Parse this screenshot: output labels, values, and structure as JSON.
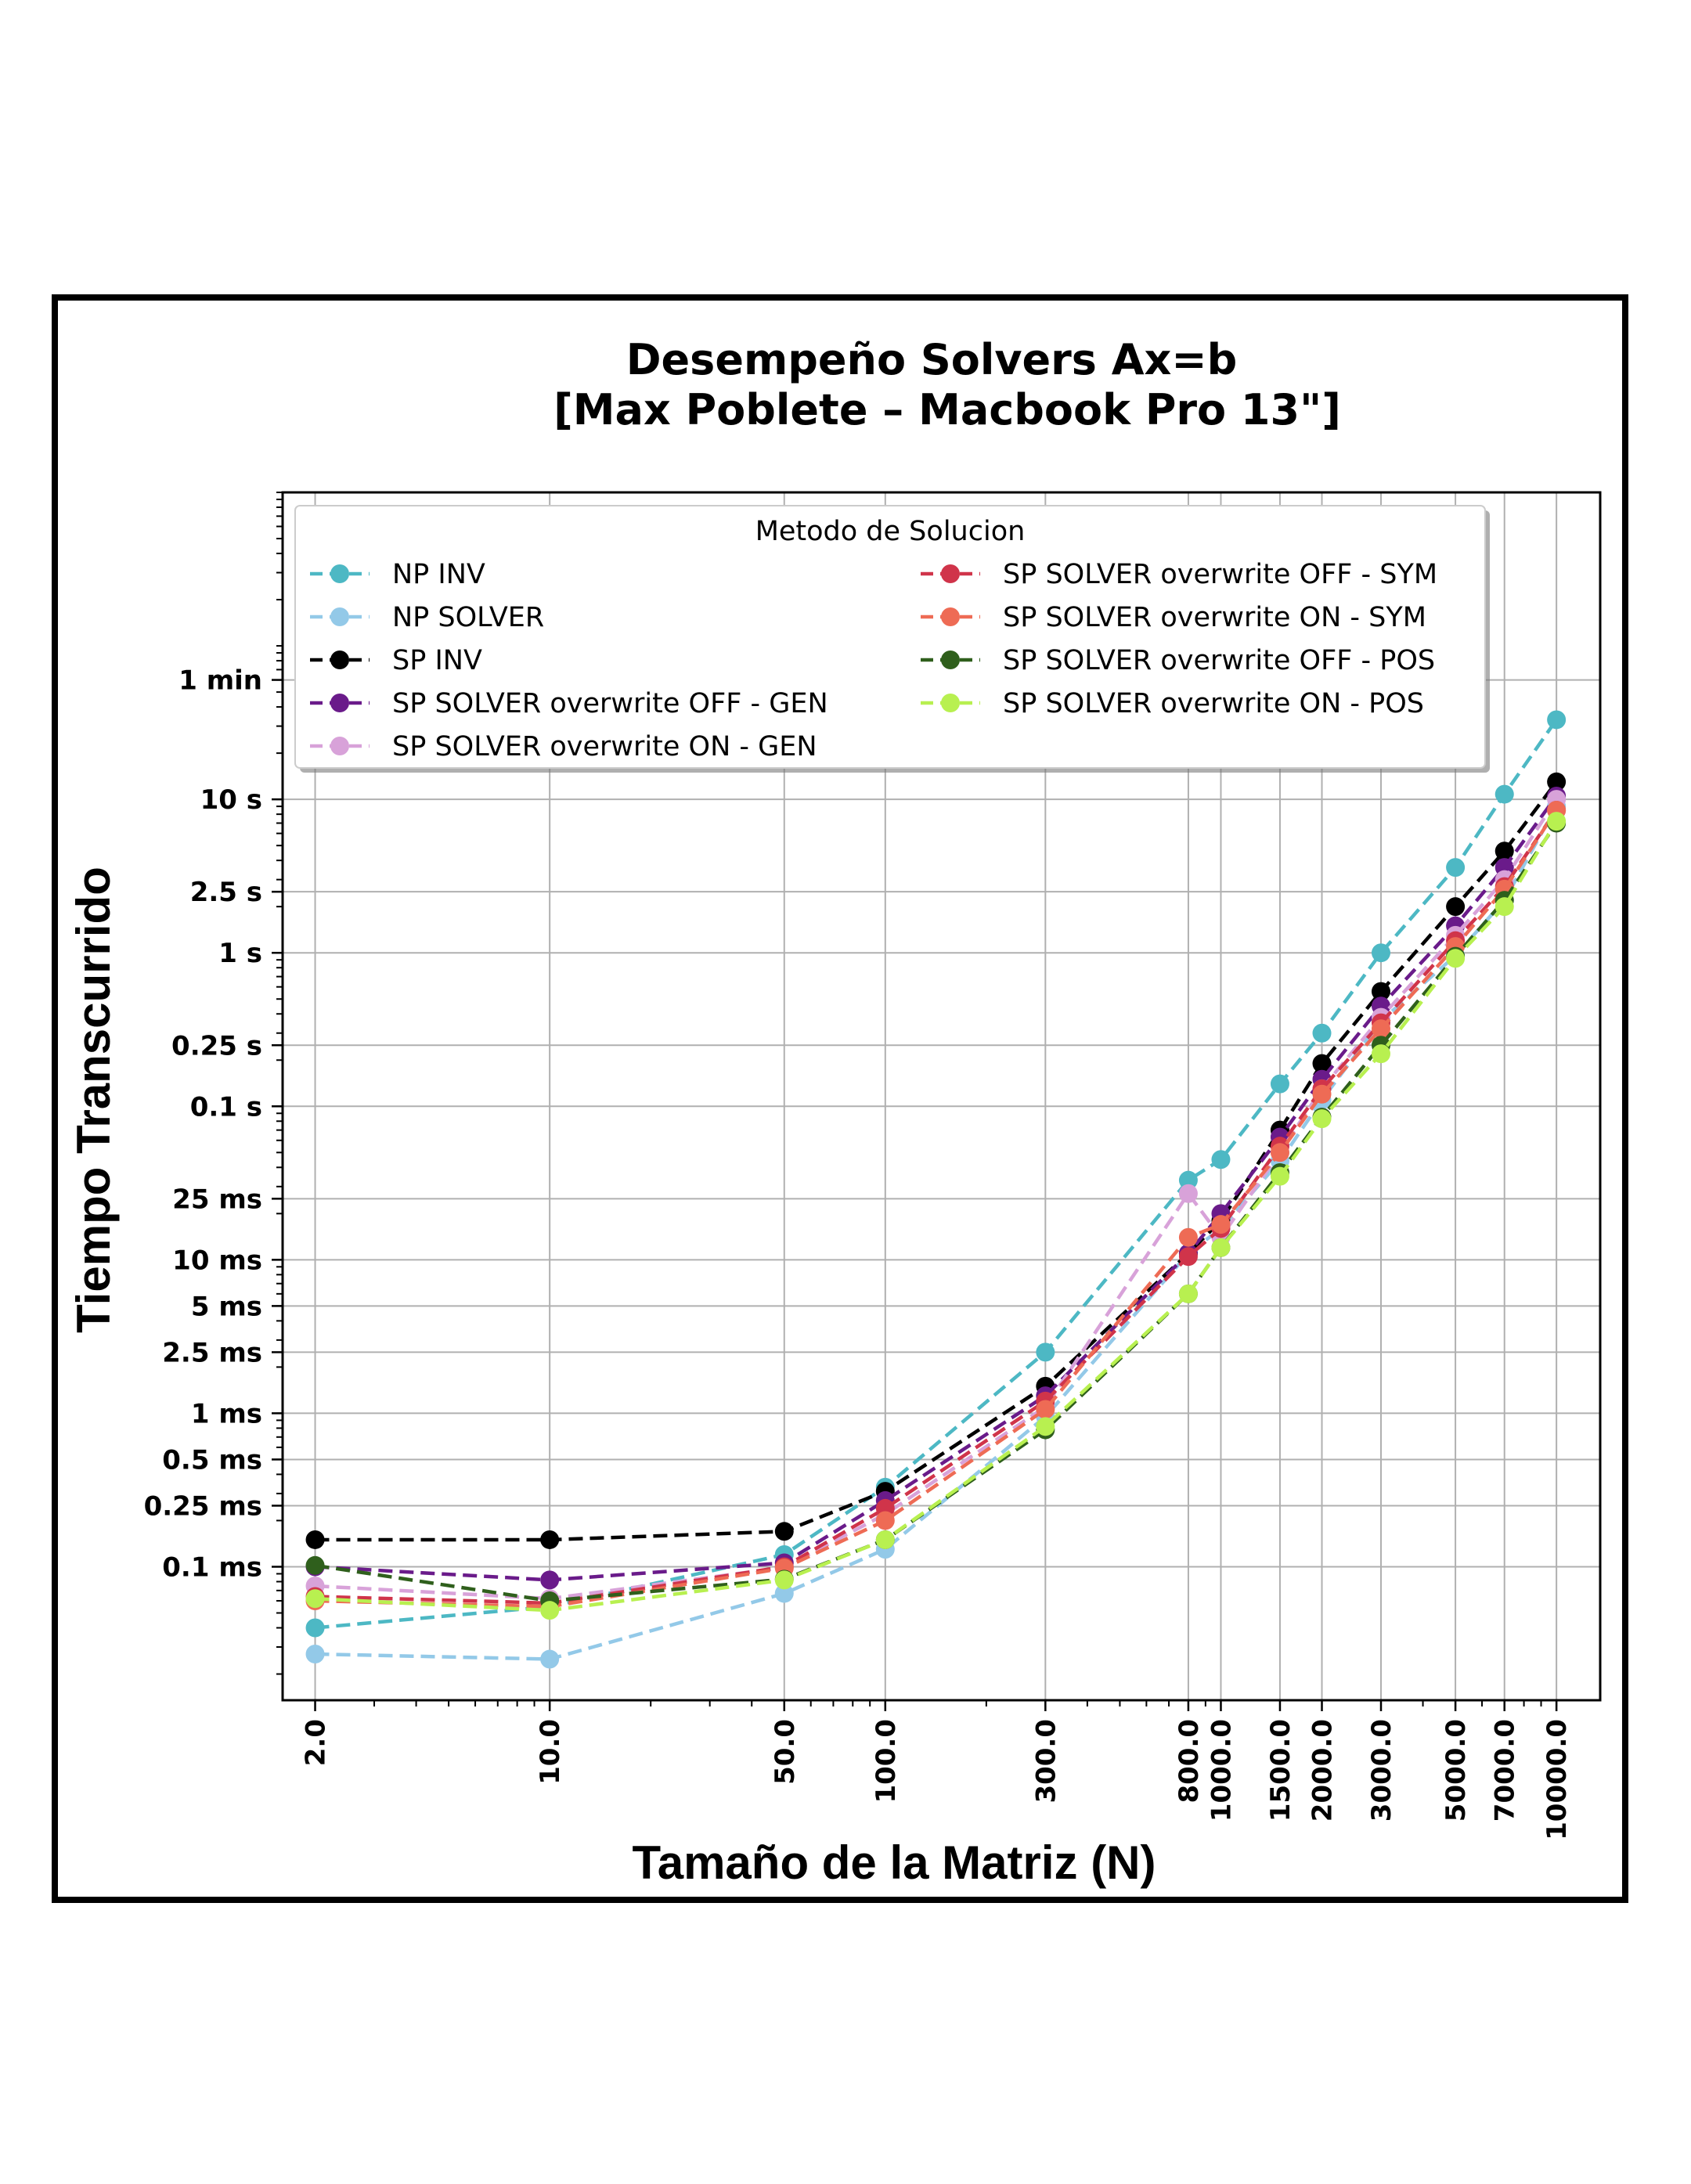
{
  "chart_data": {
    "type": "line",
    "title": [
      "Desempeño Solvers Ax=b",
      "[Max Poblete – Macbook Pro 13\"]"
    ],
    "xlabel": "Tamaño de la Matriz (N)",
    "ylabel": "Tiempo Transcurrido",
    "x_scale": "log",
    "y_scale": "log",
    "grid": true,
    "x": [
      2,
      10,
      50,
      100,
      300,
      800,
      1000,
      1500,
      2000,
      3000,
      5000,
      7000,
      10000
    ],
    "x_tick_labels": [
      "2.0",
      "10.0",
      "50.0",
      "100.0",
      "300.0",
      "800.0",
      "1000.0",
      "1500.0",
      "2000.0",
      "3000.0",
      "5000.0",
      "7000.0",
      "10000.0"
    ],
    "xlim": [
      1.6,
      13500
    ],
    "ylim_seconds": [
      1.35e-05,
      1000
    ],
    "y_ticks": [
      {
        "value": 0.0001,
        "label": "0.1 ms"
      },
      {
        "value": 0.00025,
        "label": "0.25 ms"
      },
      {
        "value": 0.0005,
        "label": "0.5 ms"
      },
      {
        "value": 0.001,
        "label": "1 ms"
      },
      {
        "value": 0.0025,
        "label": "2.5 ms"
      },
      {
        "value": 0.005,
        "label": "5 ms"
      },
      {
        "value": 0.01,
        "label": "10 ms"
      },
      {
        "value": 0.025,
        "label": "25 ms"
      },
      {
        "value": 0.1,
        "label": "0.1 s"
      },
      {
        "value": 0.25,
        "label": "0.25 s"
      },
      {
        "value": 1,
        "label": "1 s"
      },
      {
        "value": 2.5,
        "label": "2.5 s"
      },
      {
        "value": 10,
        "label": "10 s"
      },
      {
        "value": 60,
        "label": "1 min"
      }
    ],
    "legend": {
      "title": "Metodo de Solucion",
      "position": "upper-left",
      "columns": 2
    },
    "series": [
      {
        "name": "NP INV",
        "color": "#4db8c4",
        "values": [
          4e-05,
          5.5e-05,
          0.00012,
          0.00033,
          0.0025,
          0.033,
          0.045,
          0.14,
          0.3,
          1.0,
          3.6,
          10.8,
          33
        ]
      },
      {
        "name": "NP SOLVER",
        "color": "#93c9e8",
        "values": [
          2.7e-05,
          2.5e-05,
          6.7e-05,
          0.00013,
          0.00095,
          0.011,
          0.016,
          0.044,
          0.11,
          0.36,
          0.96,
          2.2,
          9.0
        ]
      },
      {
        "name": "SP INV",
        "color": "#000000",
        "values": [
          0.00015,
          0.00015,
          0.00017,
          0.00031,
          0.0015,
          0.011,
          0.018,
          0.07,
          0.19,
          0.56,
          2.0,
          4.6,
          13
        ]
      },
      {
        "name": "SP SOLVER overwrite OFF - GEN",
        "color": "#6a1b8a",
        "values": [
          0.0001,
          8.2e-05,
          0.000106,
          0.00027,
          0.0013,
          0.011,
          0.02,
          0.063,
          0.15,
          0.45,
          1.5,
          3.6,
          10.5
        ]
      },
      {
        "name": "SP SOLVER overwrite ON - GEN",
        "color": "#d8a2d9",
        "values": [
          7.5e-05,
          6.2e-05,
          9.9e-05,
          0.00022,
          0.0011,
          0.027,
          0.014,
          0.05,
          0.13,
          0.38,
          1.3,
          3.0,
          10
        ]
      },
      {
        "name": "SP SOLVER overwrite OFF - SYM",
        "color": "#d0344a",
        "values": [
          6.4e-05,
          5.8e-05,
          0.0001,
          0.00024,
          0.0012,
          0.0105,
          0.016,
          0.055,
          0.13,
          0.35,
          1.2,
          2.7,
          8.5
        ]
      },
      {
        "name": "SP SOLVER overwrite ON - SYM",
        "color": "#ee6b55",
        "values": [
          6e-05,
          5.5e-05,
          9.8e-05,
          0.0002,
          0.00106,
          0.014,
          0.017,
          0.05,
          0.12,
          0.32,
          1.1,
          2.6,
          8.5
        ]
      },
      {
        "name": "SP SOLVER overwrite OFF - POS",
        "color": "#2f5f1c",
        "values": [
          0.000102,
          6e-05,
          8.3e-05,
          0.00015,
          0.00078,
          0.006,
          0.012,
          0.037,
          0.085,
          0.25,
          0.95,
          2.2,
          7.0
        ]
      },
      {
        "name": "SP SOLVER overwrite ON - POS",
        "color": "#b8f050",
        "values": [
          6.2e-05,
          5.2e-05,
          8.2e-05,
          0.00015,
          0.00082,
          0.006,
          0.012,
          0.035,
          0.083,
          0.22,
          0.92,
          2.0,
          7.2
        ]
      }
    ]
  }
}
